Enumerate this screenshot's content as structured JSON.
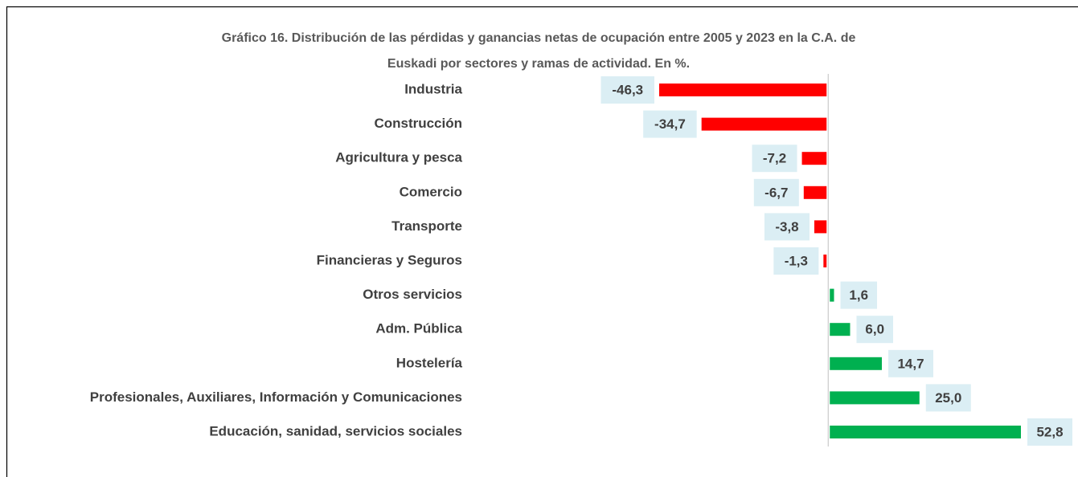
{
  "chart_data": {
    "type": "bar",
    "orientation": "horizontal",
    "title": [
      "Gráfico 16. Distribución de las pérdidas y ganancias netas de ocupación entre 2005 y 2023 en la C.A. de",
      "Euskadi por sectores y ramas de actividad. En %."
    ],
    "categories": [
      "Industria",
      "Construcción",
      "Agricultura y pesca",
      "Comercio",
      "Transporte",
      "Financieras y Seguros",
      "Otros servicios",
      "Adm. Pública",
      "Hostelería",
      "Profesionales, Auxiliares, Información y Comunicaciones",
      "Educación, sanidad, servicios sociales"
    ],
    "values": [
      -46.3,
      -34.7,
      -7.2,
      -6.7,
      -3.8,
      -1.3,
      1.6,
      6.0,
      14.7,
      25.0,
      52.8
    ],
    "value_labels": [
      "-46,3",
      "-34,7",
      "-7,2",
      "-6,7",
      "-3,8",
      "-1,3",
      "1,6",
      "6,0",
      "14,7",
      "25,0",
      "52,8"
    ],
    "colors": {
      "negative": "#ff0000",
      "positive": "#00b050"
    },
    "grid": false
  }
}
